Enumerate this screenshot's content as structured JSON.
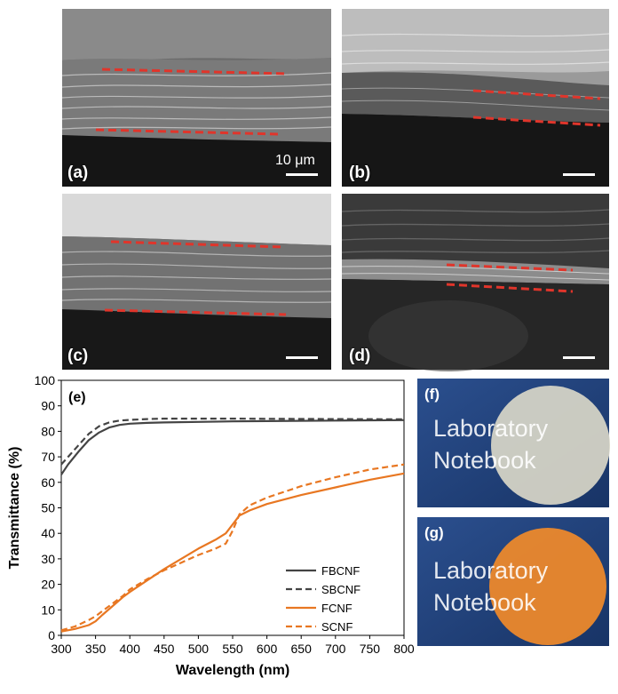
{
  "panels": {
    "a": {
      "label": "(a)",
      "scale_text": "10 μm"
    },
    "b": {
      "label": "(b)"
    },
    "c": {
      "label": "(c)"
    },
    "d": {
      "label": "(d)"
    },
    "f": {
      "label": "(f)",
      "line1": "Laboratory",
      "line2": "Notebook"
    },
    "g": {
      "label": "(g)",
      "line1": "Laboratory",
      "line2": "Notebook"
    }
  },
  "colors": {
    "dash_red": "#e0352b",
    "sbc_gray": "#444444",
    "cnf_orange": "#e87722",
    "photo_blue": "#1f3e7a",
    "disk_f": "#d9d7c8",
    "disk_g": "#f08a2a"
  },
  "chart_data": {
    "type": "line",
    "panel_label": "(e)",
    "xlabel": "Wavelength (nm)",
    "ylabel": "Transmittance (%)",
    "xlim": [
      300,
      800
    ],
    "ylim": [
      0,
      100
    ],
    "xticks": [
      300,
      350,
      400,
      450,
      500,
      550,
      600,
      650,
      700,
      750,
      800
    ],
    "yticks": [
      0,
      10,
      20,
      30,
      40,
      50,
      60,
      70,
      80,
      90,
      100
    ],
    "legend_position": "lower-right",
    "series": [
      {
        "name": "FBCNF",
        "color": "#444444",
        "dash": false,
        "x": [
          300,
          310,
          325,
          340,
          355,
          370,
          385,
          400,
          425,
          450,
          500,
          550,
          600,
          700,
          800
        ],
        "y": [
          63,
          67,
          72,
          76.5,
          79.5,
          81.5,
          82.5,
          83,
          83.3,
          83.5,
          83.7,
          83.9,
          84,
          84.2,
          84.4
        ]
      },
      {
        "name": "SBCNF",
        "color": "#444444",
        "dash": true,
        "x": [
          300,
          310,
          325,
          340,
          355,
          370,
          385,
          400,
          425,
          450,
          500,
          550,
          600,
          700,
          800
        ],
        "y": [
          67,
          70,
          74.5,
          79,
          82,
          83.5,
          84.2,
          84.5,
          84.8,
          85,
          85,
          85,
          84.9,
          84.8,
          84.7
        ]
      },
      {
        "name": "FCNF",
        "color": "#e87722",
        "dash": false,
        "x": [
          300,
          320,
          340,
          350,
          360,
          375,
          390,
          400,
          425,
          450,
          475,
          500,
          525,
          540,
          550,
          560,
          575,
          600,
          650,
          700,
          750,
          800
        ],
        "y": [
          1.5,
          2.5,
          4,
          5.5,
          8,
          11.5,
          15,
          17,
          21.5,
          26,
          30,
          34,
          37.5,
          40,
          43.5,
          47,
          49,
          51.5,
          55,
          58,
          61,
          63.5
        ]
      },
      {
        "name": "SCNF",
        "color": "#e87722",
        "dash": true,
        "x": [
          300,
          320,
          340,
          350,
          360,
          375,
          390,
          400,
          425,
          450,
          475,
          500,
          525,
          540,
          550,
          560,
          575,
          600,
          650,
          700,
          750,
          800
        ],
        "y": [
          2,
          3.5,
          6,
          7.5,
          9.5,
          12.5,
          15.5,
          18,
          22,
          25.5,
          28.5,
          31.5,
          34,
          36,
          41,
          47.5,
          51,
          54,
          58.5,
          62,
          65,
          67
        ]
      }
    ]
  }
}
